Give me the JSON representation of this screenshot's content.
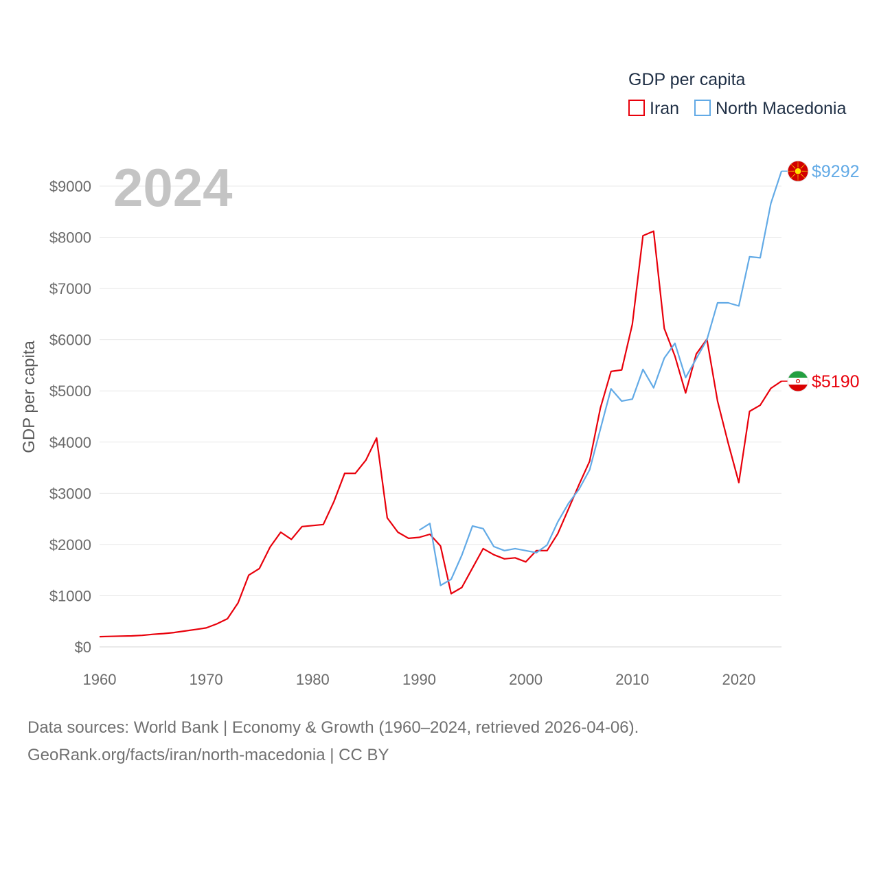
{
  "chart_data": {
    "type": "line",
    "title": "GDP per capita",
    "year_label": "2024",
    "ylabel": "GDP per capita",
    "xlabel": "",
    "xlim": [
      1960,
      2024
    ],
    "ylim": [
      0,
      9000
    ],
    "x_ticks": [
      1960,
      1970,
      1980,
      1990,
      2000,
      2010,
      2020
    ],
    "y_ticks": [
      0,
      1000,
      2000,
      3000,
      4000,
      5000,
      6000,
      7000,
      8000,
      9000
    ],
    "y_tick_labels": [
      "$0",
      "$1000",
      "$2000",
      "$3000",
      "$4000",
      "$5000",
      "$6000",
      "$7000",
      "$8000",
      "$9000"
    ],
    "grid": true,
    "legend": {
      "title": "GDP per capita",
      "position": "top-right"
    },
    "series": [
      {
        "name": "Iran",
        "color": "#e8000b",
        "end_label": "$5190",
        "flag_icon": "iran-flag-icon",
        "x": [
          1960,
          1961,
          1962,
          1963,
          1964,
          1965,
          1966,
          1967,
          1968,
          1969,
          1970,
          1971,
          1972,
          1973,
          1974,
          1975,
          1976,
          1977,
          1978,
          1979,
          1980,
          1981,
          1982,
          1983,
          1984,
          1985,
          1986,
          1987,
          1988,
          1989,
          1990,
          1991,
          1992,
          1993,
          1994,
          1995,
          1996,
          1997,
          1998,
          1999,
          2000,
          2001,
          2002,
          2003,
          2004,
          2005,
          2006,
          2007,
          2008,
          2009,
          2010,
          2011,
          2012,
          2013,
          2014,
          2015,
          2016,
          2017,
          2018,
          2019,
          2020,
          2021,
          2022,
          2023,
          2024
        ],
        "values": [
          200,
          205,
          210,
          215,
          225,
          245,
          260,
          280,
          310,
          340,
          370,
          450,
          550,
          860,
          1400,
          1530,
          1950,
          2240,
          2100,
          2350,
          2370,
          2390,
          2840,
          3390,
          3390,
          3650,
          4080,
          2520,
          2240,
          2120,
          2140,
          2200,
          1970,
          1040,
          1160,
          1540,
          1920,
          1800,
          1720,
          1740,
          1660,
          1880,
          1880,
          2210,
          2690,
          3170,
          3630,
          4660,
          5380,
          5410,
          6300,
          8030,
          8120,
          6220,
          5680,
          4960,
          5720,
          6010,
          4800,
          3980,
          3210,
          4600,
          4720,
          5050,
          5190
        ]
      },
      {
        "name": "North Macedonia",
        "color": "#62aae6",
        "end_label": "$9292",
        "flag_icon": "north-macedonia-flag-icon",
        "x": [
          1990,
          1991,
          1992,
          1993,
          1994,
          1995,
          1996,
          1997,
          1998,
          1999,
          2000,
          2001,
          2002,
          2003,
          2004,
          2005,
          2006,
          2007,
          2008,
          2009,
          2010,
          2011,
          2012,
          2013,
          2014,
          2015,
          2016,
          2017,
          2018,
          2019,
          2020,
          2021,
          2022,
          2023,
          2024
        ],
        "values": [
          2280,
          2410,
          1200,
          1320,
          1790,
          2360,
          2310,
          1960,
          1880,
          1920,
          1880,
          1840,
          1990,
          2440,
          2800,
          3080,
          3460,
          4250,
          5040,
          4800,
          4840,
          5420,
          5060,
          5640,
          5930,
          5260,
          5630,
          6000,
          6720,
          6720,
          6660,
          7620,
          7600,
          8660,
          9292
        ]
      }
    ]
  },
  "footer": {
    "source_line": "Data sources: World Bank | Economy & Growth (1960–2024, retrieved 2026-04-06).",
    "credit_line": "GeoRank.org/facts/iran/north-macedonia | CC BY"
  }
}
